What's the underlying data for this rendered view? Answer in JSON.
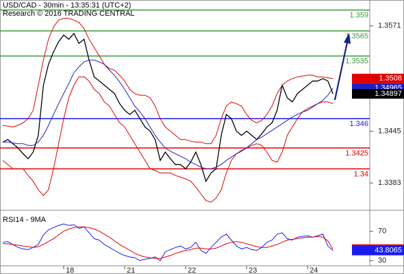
{
  "chart_data": [
    {
      "type": "line",
      "title": "USD/CAD - 30min - 13:35:31 (UTC+2)",
      "subtitle": "Research © 2016 TRADING CENTRAL",
      "categories": [
        null,
        null,
        null,
        null,
        null,
        null,
        null,
        null,
        null,
        null,
        null,
        null,
        "18",
        null,
        null,
        null,
        null,
        null,
        null,
        null,
        null,
        null,
        null,
        null,
        "21",
        null,
        null,
        null,
        null,
        null,
        null,
        null,
        null,
        null,
        null,
        null,
        "22",
        null,
        null,
        null,
        null,
        null,
        null,
        null,
        null,
        null,
        null,
        null,
        "23",
        null,
        null,
        null,
        null,
        null,
        null,
        null,
        null,
        null,
        null,
        null,
        "24",
        null,
        null,
        null,
        null,
        null
      ],
      "series": [
        {
          "color": "#000000",
          "values": [
            1.3432,
            1.3435,
            1.343,
            1.3425,
            1.3418,
            1.3412,
            1.342,
            1.344,
            1.35,
            1.3525,
            1.354,
            1.3552,
            1.356,
            1.3555,
            1.3562,
            1.355,
            1.3555,
            1.353,
            1.351,
            1.3505,
            1.35,
            1.3495,
            1.349,
            1.3478,
            1.347,
            1.3465,
            1.347,
            1.346,
            1.345,
            1.3445,
            1.3435,
            1.341,
            1.342,
            1.3412,
            1.3405,
            1.3405,
            1.34,
            1.3408,
            1.342,
            1.3405,
            1.3385,
            1.3395,
            1.34,
            1.344,
            1.3465,
            1.346,
            1.3445,
            1.344,
            1.3445,
            1.344,
            1.3435,
            1.3442,
            1.345,
            1.3455,
            1.347,
            1.35,
            1.3485,
            1.348,
            1.349,
            1.3495,
            1.35,
            1.3505,
            1.3505,
            1.3508,
            1.3505,
            1.34897
          ]
        },
        {
          "color": "#e00000",
          "values": [
            1.3452,
            1.3451,
            1.345,
            1.3452,
            1.3455,
            1.346,
            1.347,
            1.35,
            1.353,
            1.3555,
            1.357,
            1.3578,
            1.358,
            1.358,
            1.3578,
            1.3575,
            1.3568,
            1.3555,
            1.3545,
            1.3535,
            1.3525,
            1.352,
            1.3518,
            1.3512,
            1.3505,
            1.3495,
            1.349,
            1.3488,
            1.3488,
            1.3485,
            1.3475,
            1.346,
            1.345,
            1.3445,
            1.344,
            1.3435,
            1.3435,
            1.3433,
            1.3432,
            1.3432,
            1.343,
            1.343,
            1.344,
            1.346,
            1.3475,
            1.348,
            1.3478,
            1.3475,
            1.3465,
            1.3458,
            1.3455,
            1.3458,
            1.3465,
            1.3475,
            1.349,
            1.35,
            1.3505,
            1.3508,
            1.351,
            1.3511,
            1.3512,
            1.3512,
            1.351,
            1.351,
            1.3509,
            1.3508
          ]
        },
        {
          "color": "#e00000",
          "values": [
            1.341,
            1.3405,
            1.34,
            1.34,
            1.34,
            1.3392,
            1.3385,
            1.3375,
            1.3368,
            1.3375,
            1.34,
            1.343,
            1.346,
            1.3485,
            1.35,
            1.351,
            1.351,
            1.3505,
            1.3495,
            1.349,
            1.348,
            1.3475,
            1.3465,
            1.3455,
            1.345,
            1.344,
            1.343,
            1.342,
            1.341,
            1.34,
            1.3398,
            1.3395,
            1.3395,
            1.3395,
            1.3392,
            1.339,
            1.3388,
            1.3385,
            1.3378,
            1.337,
            1.3362,
            1.336,
            1.3365,
            1.3375,
            1.3395,
            1.341,
            1.3418,
            1.3422,
            1.3425,
            1.3428,
            1.343,
            1.3428,
            1.342,
            1.341,
            1.3408,
            1.342,
            1.344,
            1.345,
            1.346,
            1.3468,
            1.3472,
            1.3475,
            1.3478,
            1.348,
            1.348,
            1.3478
          ]
        },
        {
          "color": "#2020c0",
          "values": [
            1.3432,
            1.3432,
            1.3431,
            1.343,
            1.343,
            1.3428,
            1.3428,
            1.3432,
            1.344,
            1.3452,
            1.3465,
            1.3478,
            1.349,
            1.3502,
            1.3515,
            1.3522,
            1.3528,
            1.353,
            1.353,
            1.3528,
            1.3525,
            1.3518,
            1.3512,
            1.3504,
            1.3495,
            1.3485,
            1.3475,
            1.3468,
            1.346,
            1.345,
            1.344,
            1.3432,
            1.3425,
            1.3421,
            1.3418,
            1.3415,
            1.3412,
            1.3408,
            1.3405,
            1.3402,
            1.34,
            1.34,
            1.3402,
            1.3405,
            1.341,
            1.3414,
            1.3418,
            1.3421,
            1.3425,
            1.343,
            1.3435,
            1.3438,
            1.3442,
            1.3446,
            1.345,
            1.3454,
            1.3458,
            1.3462,
            1.3465,
            1.3468,
            1.347,
            1.3474,
            1.3478,
            1.3482,
            1.3488,
            1.34965
          ]
        }
      ],
      "last_value_boxes": [
        1,
        3,
        0
      ],
      "levels": [
        {
          "value": 1.359,
          "color": "#3a9a3a"
        },
        {
          "value": 1.3565,
          "color": "#3a9a3a"
        },
        {
          "value": 1.3535,
          "color": "#3a9a3a"
        },
        {
          "value": 1.346,
          "color": "#1a1aee"
        },
        {
          "value": 1.3425,
          "color": "#e00000"
        },
        {
          "value": 1.34,
          "color": "#e00000"
        }
      ],
      "ylim": [
        1.3352,
        1.3602
      ],
      "yticks": [
        1.3383,
        1.3445,
        1.3571
      ]
    },
    {
      "type": "line",
      "title": "RSI14 - 9MA",
      "series": [
        {
          "color": "#1a1aee",
          "values": [
            55,
            56,
            52,
            48,
            46,
            45,
            48,
            52,
            65,
            72,
            75,
            78,
            80,
            78,
            79,
            74,
            76,
            68,
            60,
            58,
            52,
            48,
            44,
            40,
            37,
            35,
            34,
            30,
            32,
            33,
            35,
            30,
            42,
            45,
            48,
            50,
            46,
            48,
            55,
            44,
            40,
            48,
            55,
            62,
            66,
            58,
            50,
            46,
            48,
            45,
            44,
            48,
            55,
            58,
            66,
            68,
            60,
            58,
            62,
            63,
            64,
            62,
            64,
            66,
            50,
            43.8065
          ]
        },
        {
          "color": "#e00000",
          "values": [
            53,
            53,
            52,
            51,
            50,
            49,
            48,
            49,
            52,
            56,
            60,
            65,
            70,
            73,
            75,
            76,
            76,
            75,
            73,
            70,
            66,
            62,
            57,
            52,
            48,
            44,
            40,
            37,
            35,
            34,
            33,
            33,
            35,
            37,
            40,
            42,
            44,
            45,
            47,
            47,
            46,
            46,
            47,
            50,
            53,
            55,
            56,
            55,
            53,
            51,
            49,
            48,
            48,
            50,
            52,
            55,
            58,
            59,
            60,
            61,
            62,
            62,
            63,
            62,
            57,
            45.6548
          ]
        }
      ],
      "last_value_boxes": [
        1,
        0
      ],
      "ylim": [
        23,
        93
      ],
      "yticks": [
        30,
        70
      ]
    }
  ]
}
